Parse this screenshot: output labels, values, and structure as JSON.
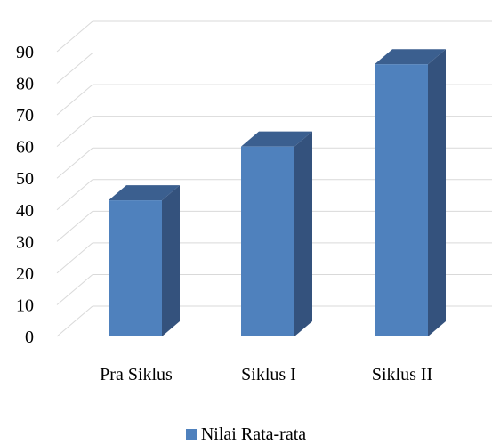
{
  "chart_data": {
    "type": "bar",
    "style": "3d-column",
    "categories": [
      "Pra Siklus",
      "Siklus I",
      "Siklus II"
    ],
    "series": [
      {
        "name": "Nilai Rata-rata",
        "values": [
          43,
          60,
          86
        ]
      }
    ],
    "title": "",
    "xlabel": "",
    "ylabel": "",
    "ylim": [
      0,
      90
    ],
    "yticks": [
      0,
      10,
      20,
      30,
      40,
      50,
      60,
      70,
      80,
      90
    ],
    "grid": true,
    "legend_position": "bottom"
  },
  "colors": {
    "bar_front": "#4F81BD",
    "bar_side": "#34527D",
    "bar_top": "#3B5F8F",
    "grid": "#D9D9D9"
  }
}
